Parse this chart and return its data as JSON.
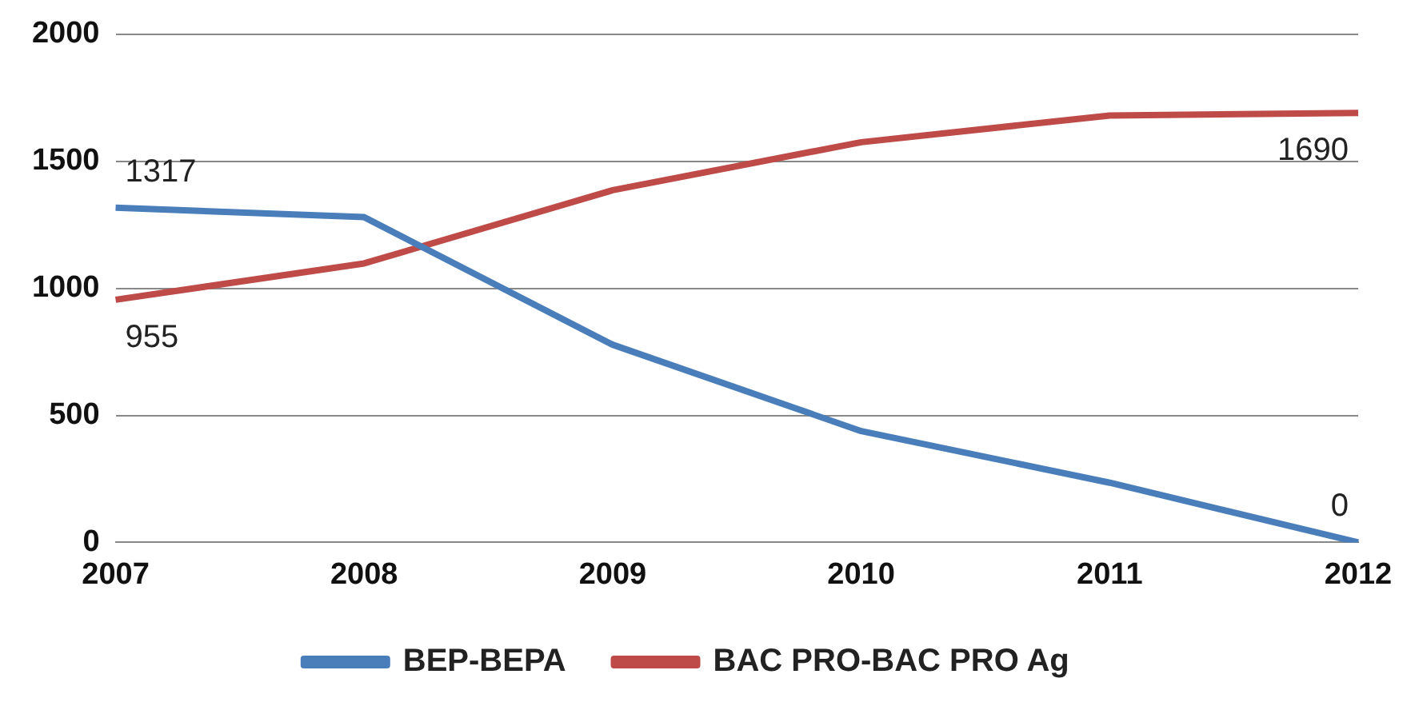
{
  "chart_data": {
    "type": "line",
    "categories": [
      "2007",
      "2008",
      "2009",
      "2010",
      "2011",
      "2012"
    ],
    "series": [
      {
        "name": "BEP-BEPA",
        "color": "#4a7ebb",
        "values": [
          1317,
          1280,
          778,
          438,
          235,
          0
        ],
        "value_labels": [
          "1317",
          null,
          null,
          null,
          null,
          "0"
        ]
      },
      {
        "name": "BAC PRO-BAC PRO Ag",
        "color": "#be4b48",
        "values": [
          955,
          1098,
          1386,
          1575,
          1680,
          1690
        ],
        "value_labels": [
          "955",
          null,
          null,
          null,
          null,
          "1690"
        ]
      }
    ],
    "ylim": [
      0,
      2000
    ],
    "yticks": [
      0,
      500,
      1000,
      1500,
      2000
    ],
    "grid": "y",
    "legend": "bottom",
    "marker": "none",
    "line_style": "solid"
  }
}
